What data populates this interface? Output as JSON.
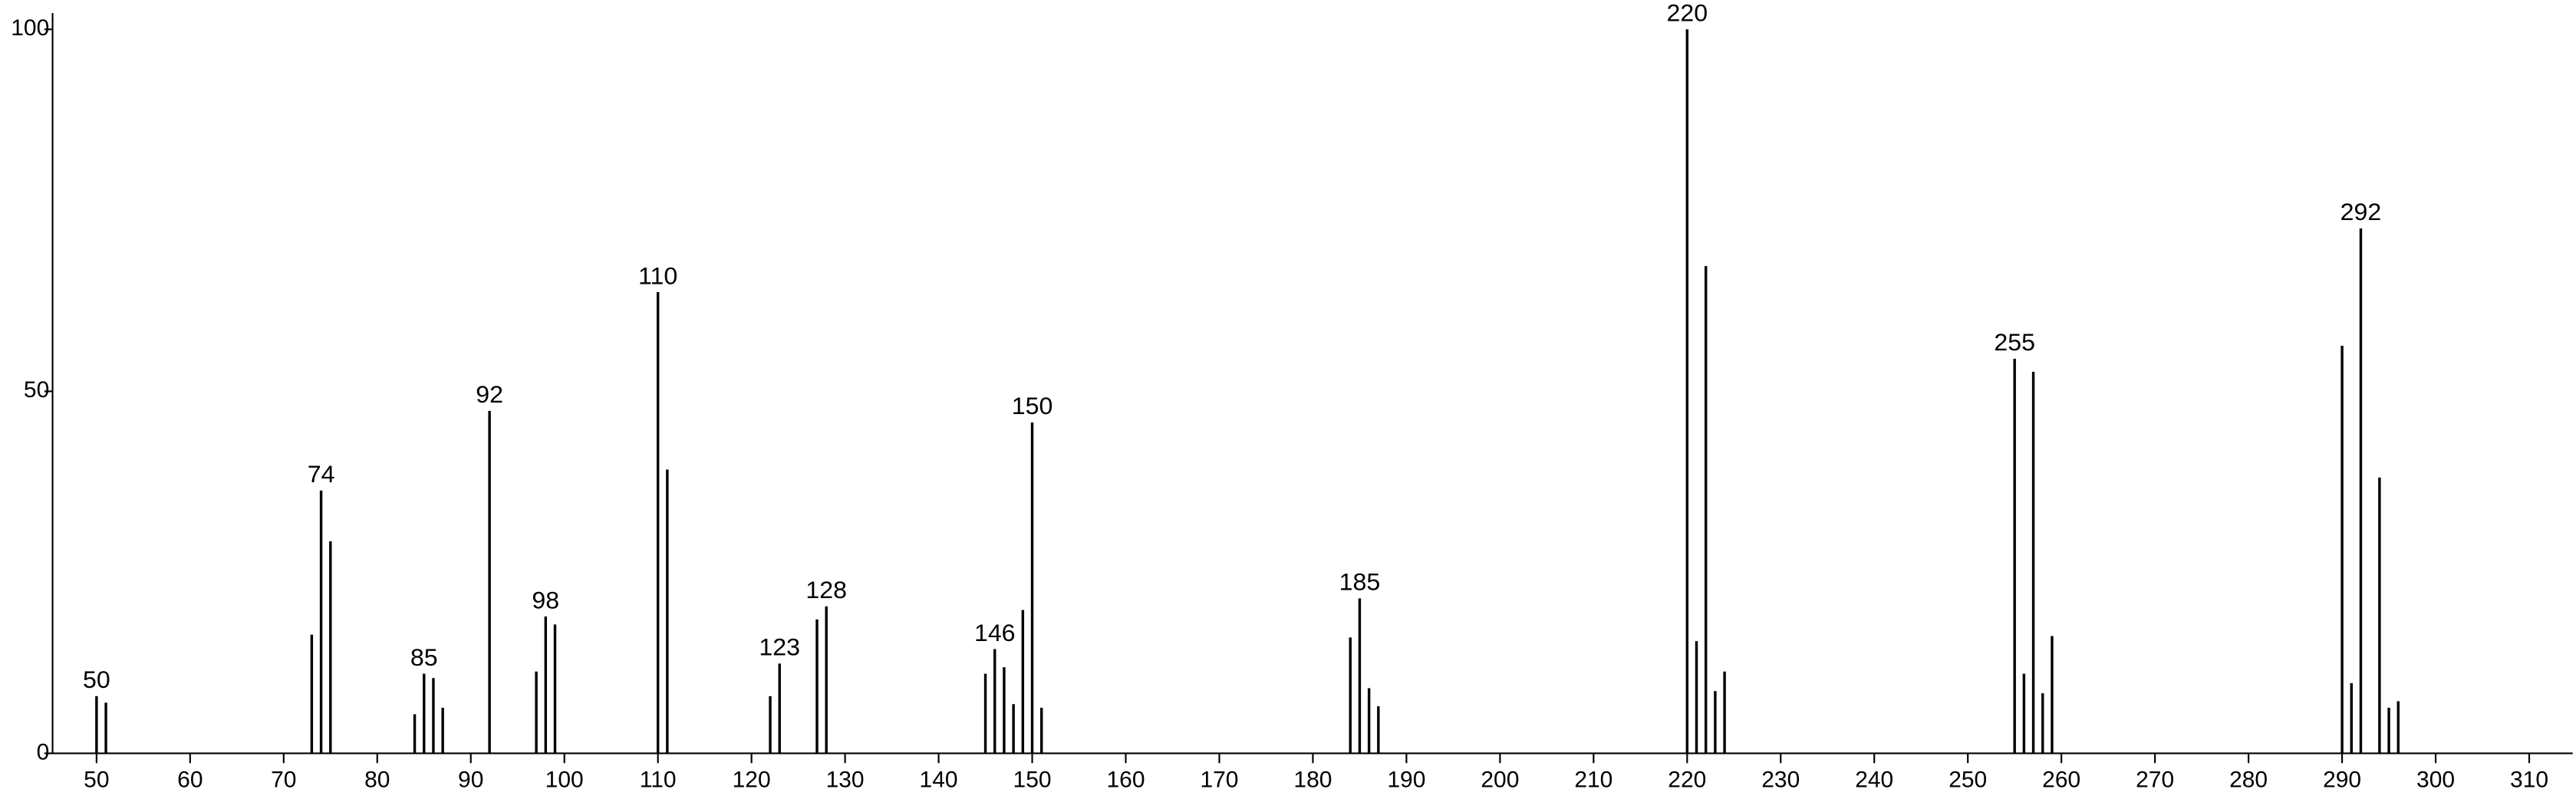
{
  "chart_data": {
    "type": "bar",
    "x": [
      50,
      51,
      73,
      74,
      75,
      84,
      85,
      86,
      87,
      92,
      97,
      98,
      99,
      110,
      111,
      122,
      123,
      127,
      128,
      145,
      146,
      147,
      148,
      149,
      150,
      151,
      184,
      185,
      186,
      187,
      220,
      221,
      222,
      223,
      224,
      255,
      256,
      257,
      258,
      259,
      290,
      291,
      292,
      294,
      295,
      296
    ],
    "values": [
      7.9,
      7.0,
      16.4,
      36.3,
      29.3,
      5.4,
      11,
      10.4,
      6.3,
      47.3,
      11.3,
      18.9,
      17.8,
      63.7,
      39.2,
      7.9,
      12.4,
      18.5,
      20.3,
      11,
      14.4,
      11.9,
      6.8,
      19.8,
      45.7,
      6.3,
      16,
      21.4,
      9,
      6.5,
      100,
      15.5,
      67.3,
      8.6,
      11.3,
      54.5,
      11,
      52.7,
      8.3,
      16.2,
      56.3,
      9.7,
      72.5,
      38.1,
      6.3,
      7.2
    ],
    "annotations": [
      50,
      74,
      85,
      92,
      98,
      110,
      123,
      128,
      146,
      150,
      185,
      220,
      255,
      292
    ],
    "color": "#000000",
    "xlim": [
      45.3,
      315
    ],
    "xticks": [
      50,
      60,
      70,
      80,
      90,
      100,
      110,
      120,
      130,
      140,
      150,
      160,
      170,
      180,
      190,
      200,
      210,
      220,
      230,
      240,
      250,
      260,
      270,
      280,
      290,
      300,
      310
    ],
    "ylim": [
      0,
      100
    ],
    "yticks": [
      0,
      50,
      100
    ]
  }
}
